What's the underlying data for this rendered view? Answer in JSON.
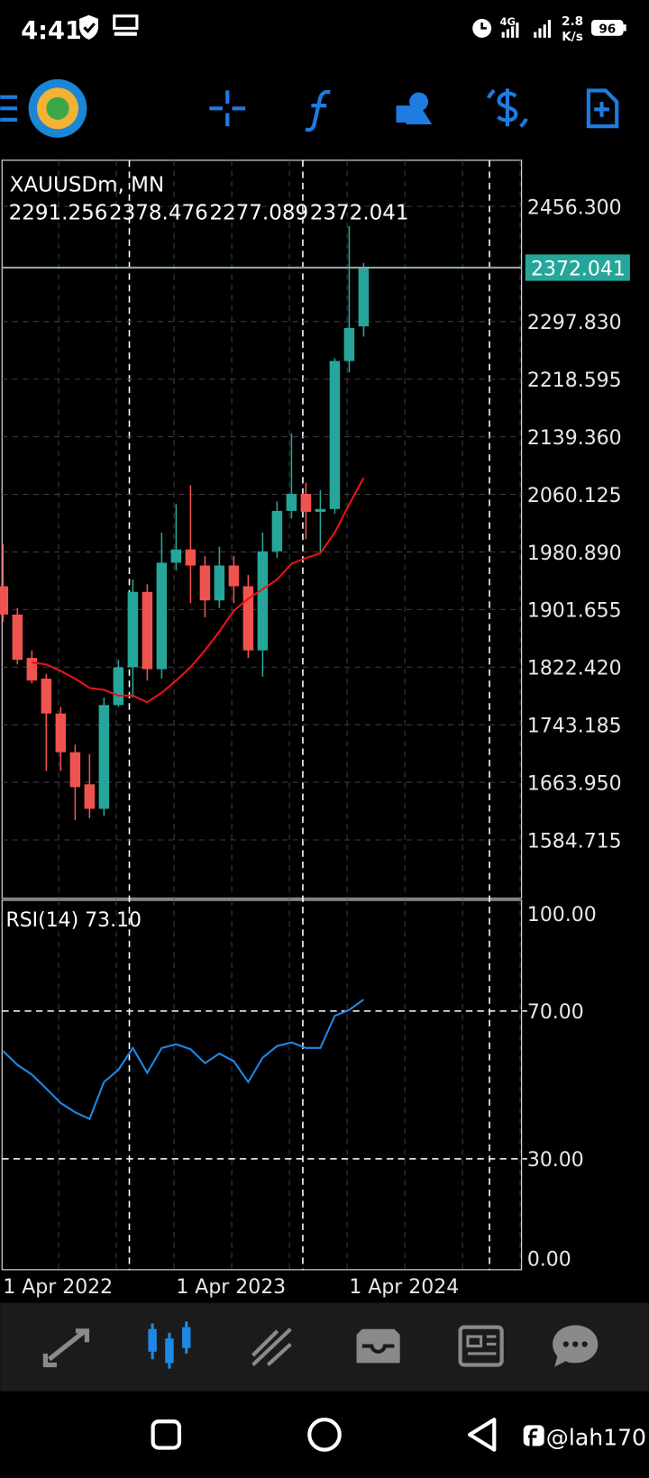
{
  "status_bar": {
    "time": "4:41",
    "network": "4G",
    "speed": "2.8",
    "speed_unit": "K/s",
    "battery": "96"
  },
  "chart_data": [
    {
      "type": "candlestick",
      "title": "XAUUSDm, MN",
      "categories": [
        "1 Apr 2022",
        null,
        null,
        null,
        null,
        null,
        null,
        null,
        null,
        null,
        null,
        null,
        "1 Apr 2023",
        null,
        null,
        null,
        null,
        null,
        null,
        null,
        null,
        null,
        null,
        null,
        "1 Apr 2024",
        null
      ],
      "open": [
        1933.7,
        1894.8,
        1835.1,
        1806.6,
        1758.6,
        1705.4,
        1661.2,
        1627.5,
        1770.3,
        1822.2,
        1925.9,
        1819.6,
        1966.1,
        1984.3,
        1962.2,
        1914.2,
        1962.2,
        1933.7,
        1845.5,
        1981.7,
        2037.4,
        2060.8,
        2036.1,
        2040.0,
        2243.6,
        2291.256
      ],
      "high": [
        1992.1,
        1903.8,
        1845.5,
        1813.1,
        1767.7,
        1715.8,
        1702.8,
        1780.6,
        1832.5,
        1942.8,
        1936.3,
        2007.6,
        2046.5,
        2072.5,
        1975.2,
        1988.2,
        1975.2,
        1949.2,
        2007.6,
        2050.4,
        2143.8,
        2076.3,
        2066.0,
        2247.5,
        2429.1,
        2378.476
      ],
      "low": [
        1884.4,
        1826.1,
        1800.1,
        1679.5,
        1679.5,
        1612.0,
        1614.6,
        1617.2,
        1767.7,
        1780.6,
        1804.0,
        1806.6,
        1955.7,
        1910.3,
        1890.9,
        1903.8,
        1910.3,
        1835.1,
        1809.2,
        1972.6,
        2027.1,
        1998.5,
        1981.7,
        2033.5,
        2228.1,
        2277.089
      ],
      "close": [
        1894.8,
        1832.5,
        1804.0,
        1758.6,
        1705.4,
        1657.4,
        1627.5,
        1770.3,
        1822.2,
        1925.9,
        1819.6,
        1966.1,
        1984.3,
        1962.2,
        1914.2,
        1962.2,
        1933.7,
        1845.5,
        1981.7,
        2037.4,
        2060.8,
        2036.1,
        2040.0,
        2243.6,
        2289.0,
        2372.041
      ],
      "up_color": "#26a69a",
      "down_color": "#ef5350",
      "overlay": {
        "color": "#e8141b",
        "values": [
          null,
          null,
          1828.7,
          1826.1,
          1817.0,
          1806.6,
          1793.7,
          1791.1,
          1783.3,
          1783.3,
          1774.2,
          1787.2,
          1804.0,
          1822.2,
          1845.5,
          1871.4,
          1900.0,
          1916.8,
          1929.8,
          1942.8,
          1964.8,
          1972.6,
          1979.1,
          2007.6,
          2046.5,
          2082.8
        ]
      },
      "ylim": [
        1504.4,
        2519.8
      ],
      "yticks": [
        {
          "value": 2456.3,
          "label": "2456.300"
        },
        {
          "value": 2297.83,
          "label": "2297.830"
        },
        {
          "value": 2218.595,
          "label": "2218.595"
        },
        {
          "value": 2139.36,
          "label": "2139.360"
        },
        {
          "value": 2060.125,
          "label": "2060.125"
        },
        {
          "value": 1980.89,
          "label": "1980.890"
        },
        {
          "value": 1901.655,
          "label": "1901.655"
        },
        {
          "value": 1822.42,
          "label": "1822.420"
        },
        {
          "value": 1743.185,
          "label": "1743.185"
        },
        {
          "value": 1663.95,
          "label": "1663.950"
        },
        {
          "value": 1584.715,
          "label": "1584.715"
        }
      ],
      "grid": true
    },
    {
      "type": "line",
      "title": "RSI(14) 73.10",
      "color": "#1e88e5",
      "values": [
        59.2,
        55.4,
        52.8,
        49.0,
        45.1,
        42.6,
        40.8,
        50.8,
        54.1,
        60.0,
        53.3,
        60.0,
        61.0,
        59.7,
        55.9,
        58.5,
        56.4,
        50.8,
        57.4,
        60.5,
        61.5,
        60.0,
        60.0,
        68.7,
        70.3,
        73.1
      ],
      "ylim": [
        0,
        100
      ],
      "yticks": [
        {
          "value": 100,
          "label": "100.00"
        },
        {
          "value": 70,
          "label": "70.00"
        },
        {
          "value": 30,
          "label": "30.00"
        },
        {
          "value": 0,
          "label": "0.00"
        }
      ]
    }
  ],
  "watermark": "@lah170"
}
